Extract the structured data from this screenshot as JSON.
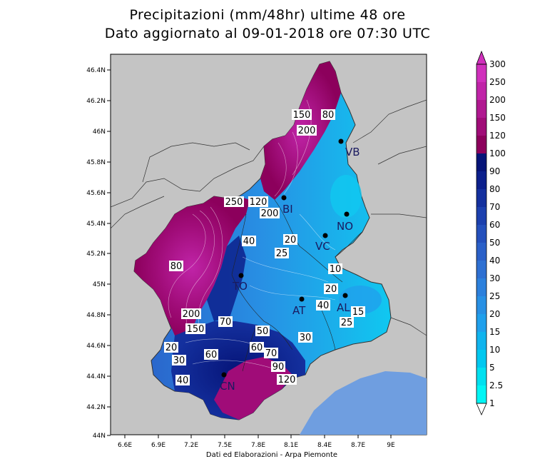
{
  "title_line1": "Precipitazioni (mm/48hr) ultime 48 ore",
  "title_line2": "Dato aggiornato al 09-01-2018 ore 07:30 UTC",
  "credit": "Dati ed Elaborazioni - Arpa Piemonte",
  "axes": {
    "x_ticks": [
      "6.6E",
      "6.9E",
      "7.2E",
      "7.5E",
      "7.8E",
      "8.1E",
      "8.4E",
      "8.7E",
      "9E"
    ],
    "y_ticks": [
      "46.4N",
      "46.2N",
      "46N",
      "45.8N",
      "45.6N",
      "45.4N",
      "45.2N",
      "45N",
      "44.8N",
      "44.6N",
      "44.4N",
      "44.2N",
      "44N"
    ]
  },
  "legend": {
    "levels": [
      "1",
      "2.5",
      "5",
      "10",
      "15",
      "20",
      "25",
      "30",
      "40",
      "50",
      "60",
      "70",
      "80",
      "90",
      "100",
      "120",
      "150",
      "200",
      "250",
      "300"
    ],
    "colors": [
      "#00f5f5",
      "#00e0f0",
      "#00c8f0",
      "#10b4ee",
      "#20a0ec",
      "#2890e4",
      "#2c80dc",
      "#2e70d2",
      "#2a60c8",
      "#2450bc",
      "#1c40ae",
      "#14309e",
      "#0c208c",
      "#061478",
      "#8c005c",
      "#a00c78",
      "#b01890",
      "#c024a8",
      "#d030bc"
    ]
  },
  "cities": [
    {
      "name": "VB"
    },
    {
      "name": "NO"
    },
    {
      "name": "VC"
    },
    {
      "name": "TO"
    },
    {
      "name": "AT"
    },
    {
      "name": "AL"
    },
    {
      "name": "BI"
    },
    {
      "name": "CN"
    }
  ],
  "labels": [
    "150",
    "80",
    "200",
    "120",
    "250",
    "200",
    "20",
    "40",
    "25",
    "10",
    "20",
    "40",
    "15",
    "25",
    "80",
    "200",
    "150",
    "70",
    "50",
    "30",
    "60",
    "70",
    "90",
    "120",
    "30",
    "40",
    "60",
    "20"
  ]
}
